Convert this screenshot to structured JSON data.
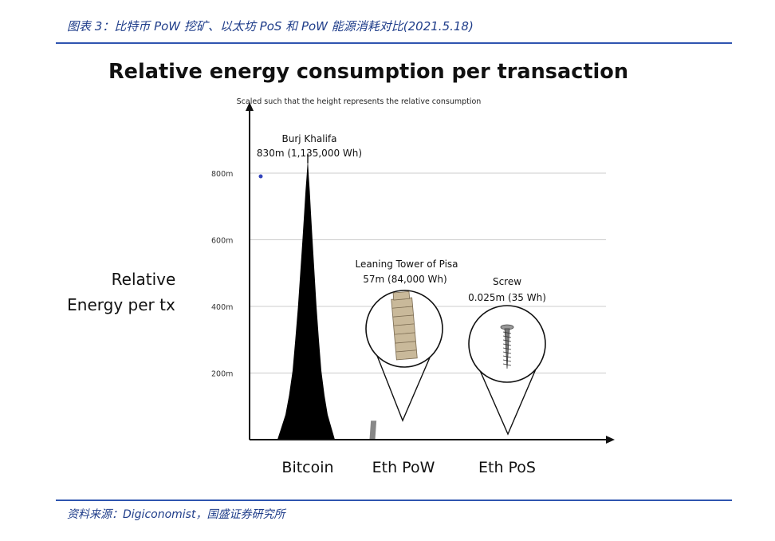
{
  "header": {
    "caption": "图表 3：比特币 PoW 挖矿、以太坊 PoS 和 PoW 能源消耗对比(2021.5.18)"
  },
  "footer": {
    "source": "资料来源：Digiconomist，国盛证券研究所"
  },
  "colors": {
    "accent": "#1f3d8a",
    "rule": "#2f55b0",
    "bar": "#000000",
    "grid": "#cccccc"
  },
  "chart_data": {
    "type": "bar",
    "title": "Relative energy consumption per transaction",
    "subtitle": "Scaled such that the height represents the relative consumption",
    "ylabel_line1": "Relative",
    "ylabel_line2": "Energy per tx",
    "categories": [
      "Bitcoin",
      "Eth PoW",
      "Eth PoS"
    ],
    "values": [
      830,
      57,
      0.025
    ],
    "unit": "m",
    "ylim": [
      0,
      830
    ],
    "yticks": [
      {
        "value": 200,
        "label": "200m"
      },
      {
        "value": 400,
        "label": "400m"
      },
      {
        "value": 600,
        "label": "600m"
      },
      {
        "value": 800,
        "label": "800m"
      }
    ],
    "grid": true,
    "annotations": [
      {
        "line1": "Burj Khalifa",
        "line2": "830m (1,135,000 Wh)"
      },
      {
        "line1": "Leaning Tower of Pisa",
        "line2": "57m (84,000 Wh)"
      },
      {
        "line1": "Screw",
        "line2": "0.025m (35 Wh)"
      }
    ]
  }
}
